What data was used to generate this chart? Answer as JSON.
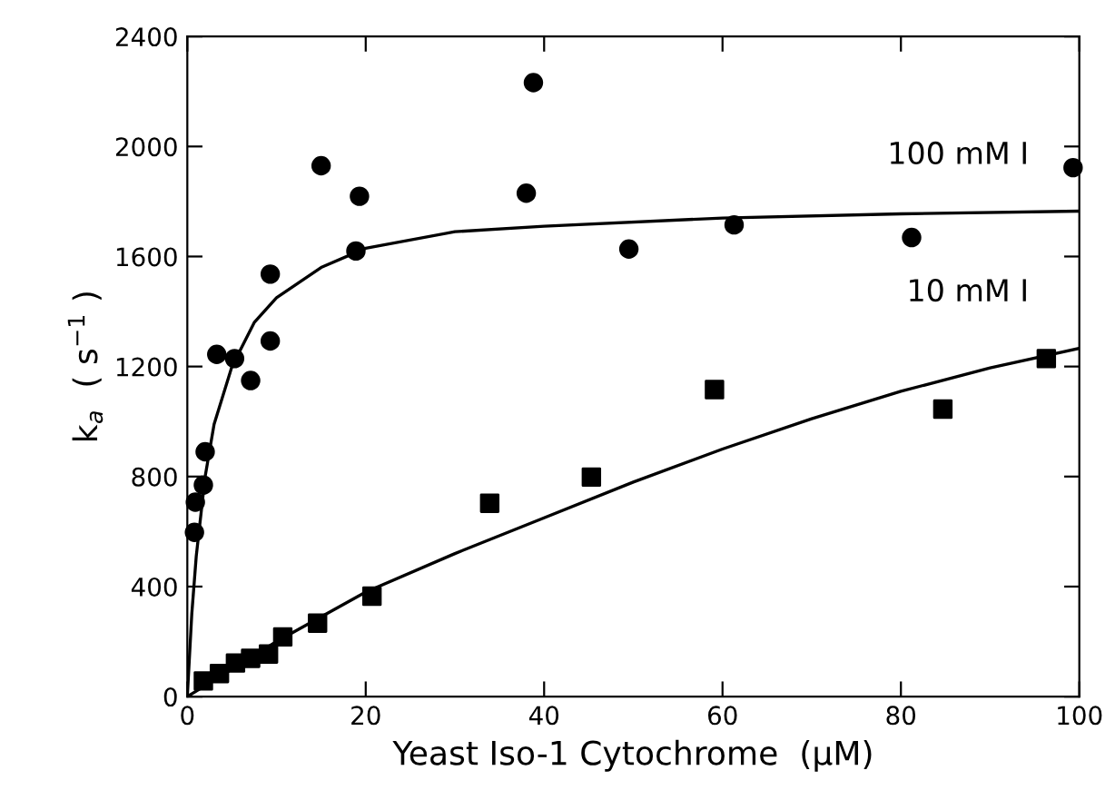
{
  "chart_data": {
    "type": "scatter",
    "xlabel": "Yeast Iso-1 Cytochrome  (µM)",
    "ylabel": "k$_{a}$  ( s$^{−1}$ )",
    "xlim": [
      0,
      100
    ],
    "ylim": [
      0,
      2400
    ],
    "xticks": [
      0,
      20,
      40,
      60,
      80,
      100
    ],
    "yticks": [
      0,
      400,
      800,
      1200,
      1600,
      2000,
      2400
    ],
    "grid": false,
    "legend": false,
    "series": [
      {
        "marker": "circle",
        "color": "#000000",
        "x": [
          0.8,
          0.9,
          1.5,
          1.8,
          2,
          3.3,
          5.3,
          7.1,
          9.3,
          9.3,
          15,
          18.9,
          19.3,
          38,
          38.8,
          49.5,
          61.3,
          81.2,
          99.3
        ],
        "values": [
          597,
          707,
          null,
          769,
          890,
          1244,
          1229,
          1149,
          1293,
          1536,
          1930,
          1620,
          1819,
          1830,
          2232,
          1627,
          1715,
          1669,
          1923
        ]
      },
      {
        "marker": "square",
        "color": "#000000",
        "x": [
          1.8,
          3.6,
          5.4,
          7.1,
          8.1,
          9.1,
          10.7,
          14.6,
          20.7,
          33.9,
          45.3,
          59.1,
          84.7,
          96.3
        ],
        "values": [
          57,
          84,
          122,
          139,
          null,
          155,
          217,
          267,
          365,
          703,
          798,
          1116,
          1045,
          1229
        ]
      },
      {
        "type": "line",
        "marker": "none",
        "color": "#000000",
        "x": [
          0,
          0.5,
          1,
          2,
          3,
          5,
          7.5,
          10,
          15,
          20,
          30,
          40,
          60,
          80,
          100
        ],
        "values": [
          0,
          300,
          510,
          800,
          990,
          1200,
          1360,
          1450,
          1560,
          1630,
          1690,
          1710,
          1740,
          1755,
          1765
        ]
      },
      {
        "type": "line",
        "marker": "none",
        "color": "#000000",
        "x": [
          0,
          5,
          10,
          20,
          30,
          40,
          50,
          60,
          70,
          80,
          90,
          100
        ],
        "values": [
          0,
          100,
          200,
          380,
          520,
          650,
          780,
          900,
          1010,
          1110,
          1195,
          1266
        ]
      }
    ],
    "annotations": [
      "100 mM I",
      "10 mM I"
    ]
  }
}
